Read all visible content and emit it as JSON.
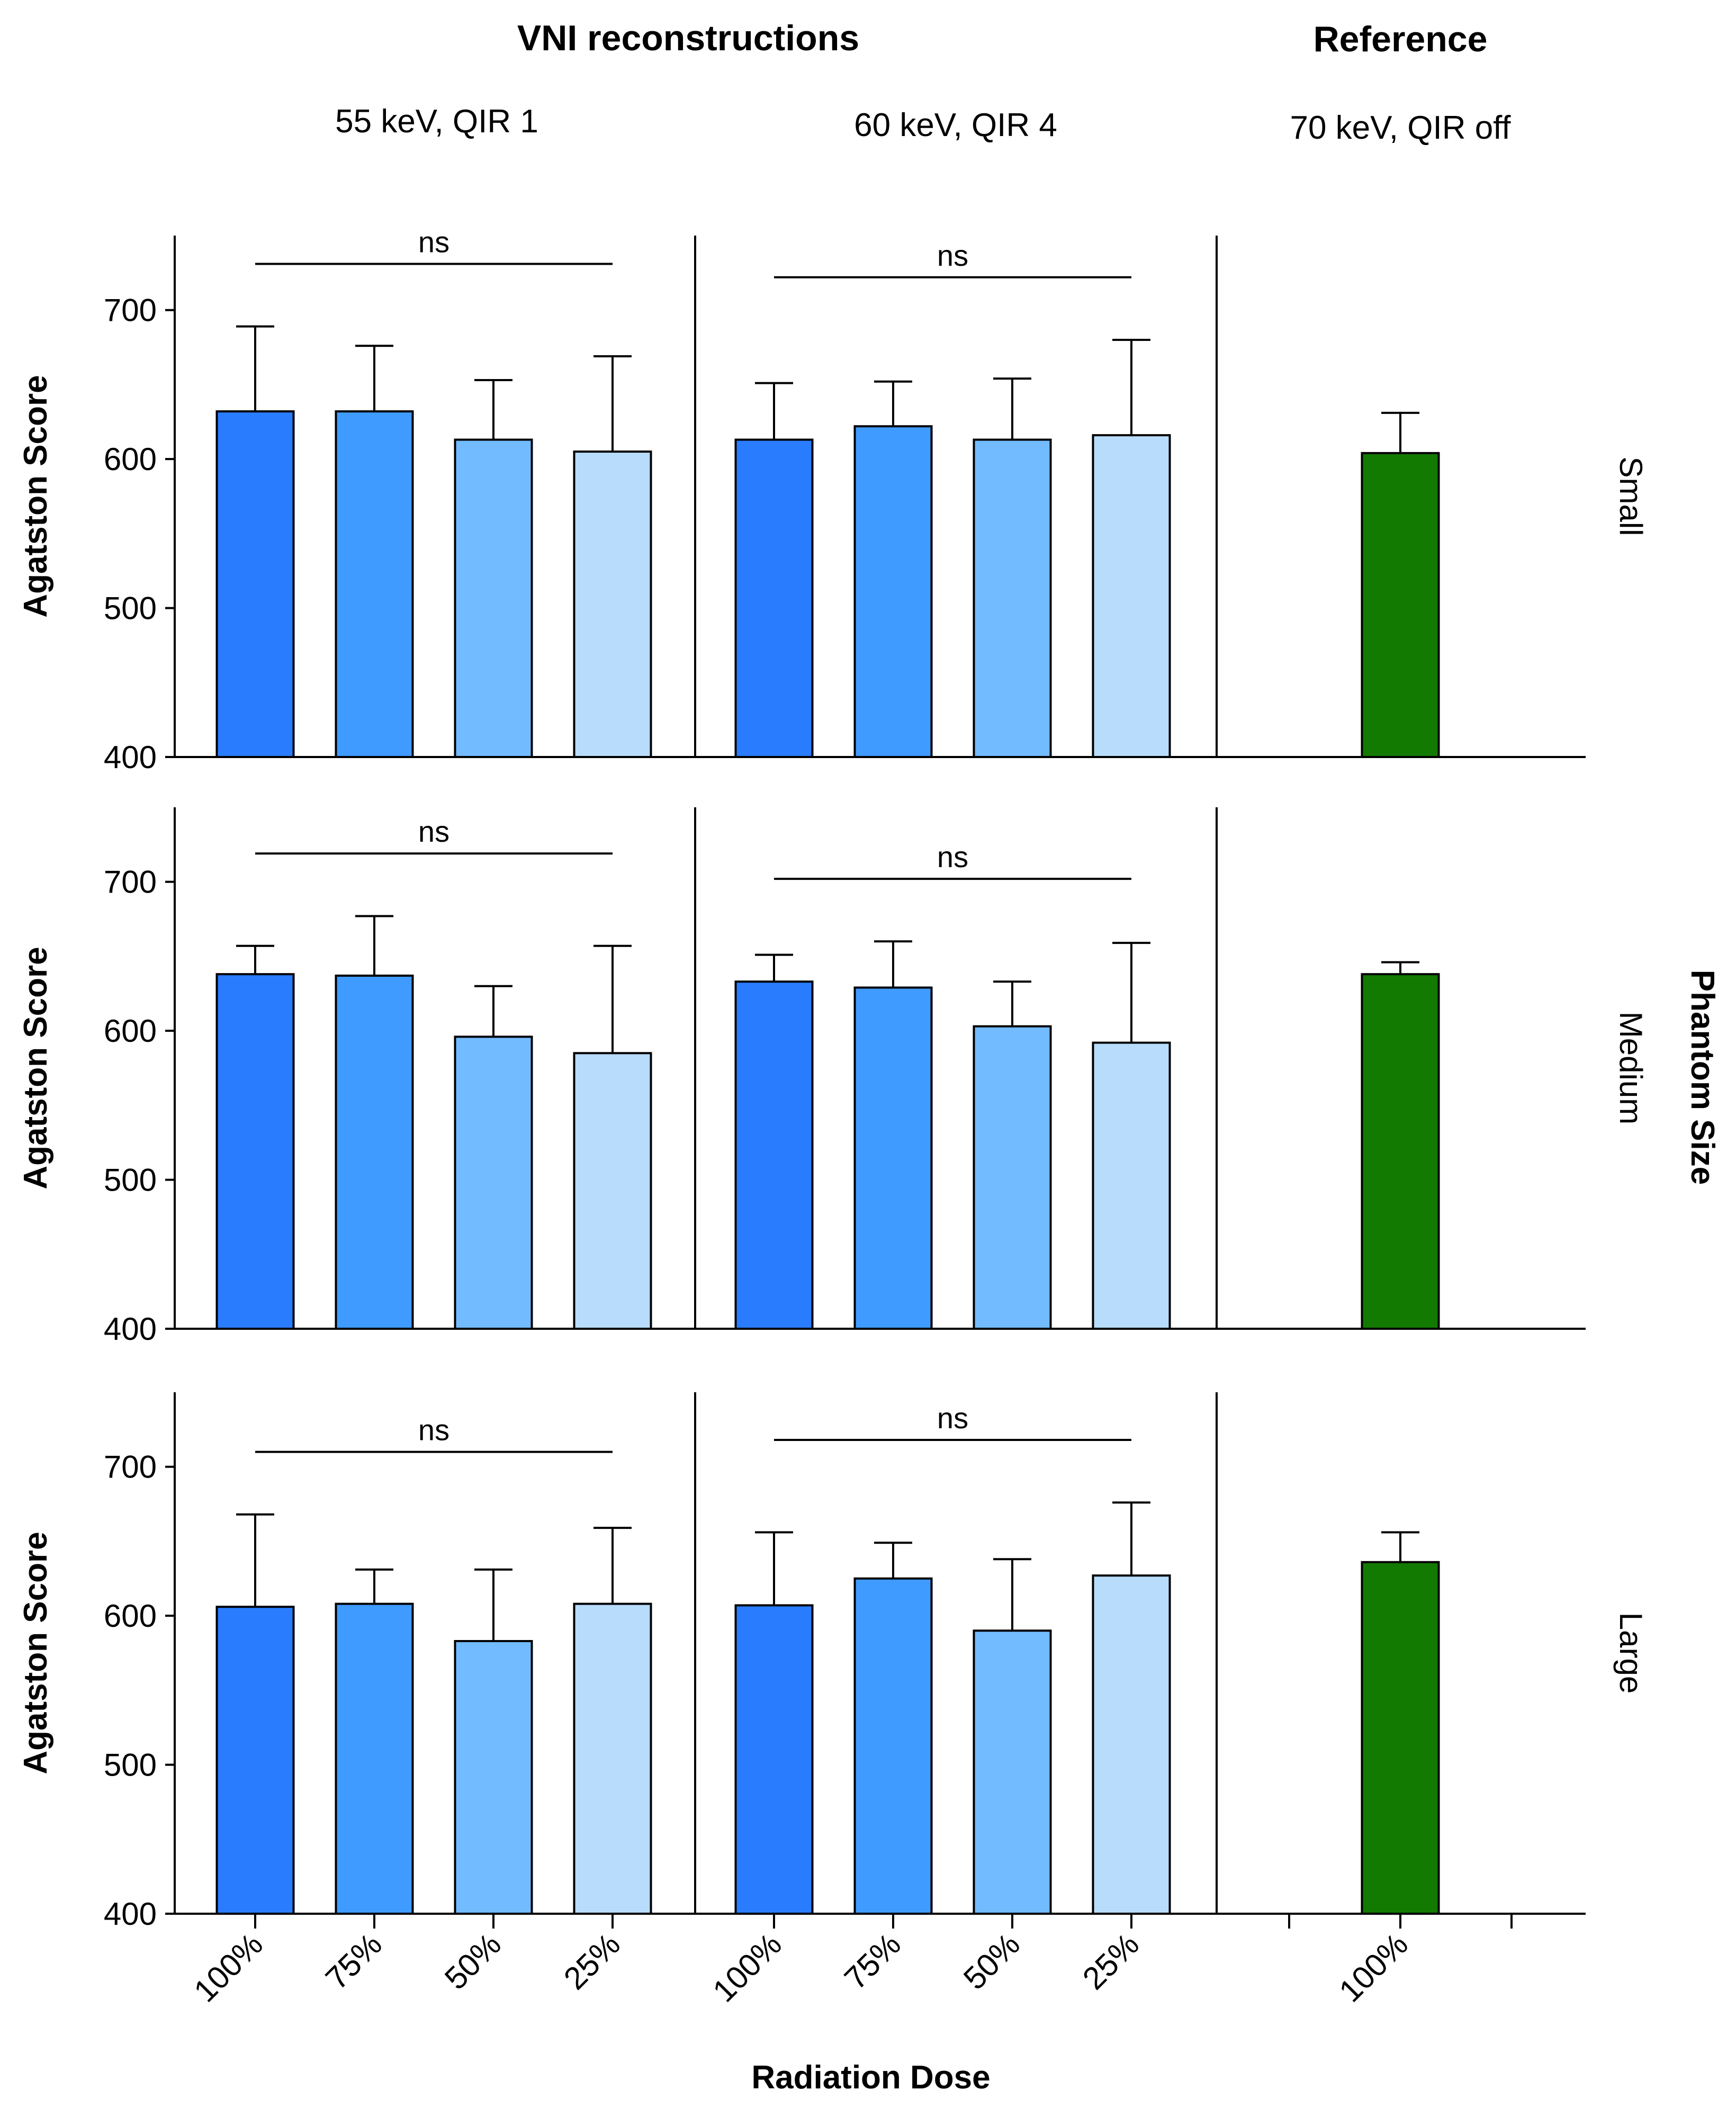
{
  "chart_data": {
    "type": "bar",
    "group_titles": {
      "vni": "VNI reconstructions",
      "reference": "Reference"
    },
    "column_subtitles": [
      "55 keV, QIR 1",
      "60 keV, QIR 4",
      "70 keV, QIR off"
    ],
    "ylabel": "Agatston Score",
    "xlabel": "Radiation Dose",
    "row_axis_label": "Phantom Size",
    "ylim": [
      400,
      750
    ],
    "yticks": [
      "400",
      "500",
      "600",
      "700"
    ],
    "categories": [
      "100%",
      "75%",
      "50%",
      "25%"
    ],
    "reference_categories": [
      "100%"
    ],
    "significance_label": "ns",
    "colors": {
      "dose_100": "#2a7cff",
      "dose_75": "#3f9bff",
      "dose_50": "#72bbff",
      "dose_25": "#b8dcfb",
      "reference": "#127a00"
    },
    "rows": [
      {
        "phantom_size": "Small",
        "panels": [
          {
            "means": [
              632,
              632,
              613,
              605
            ],
            "upper_error": [
              689,
              676,
              653,
              669
            ]
          },
          {
            "means": [
              613,
              622,
              613,
              616
            ],
            "upper_error": [
              651,
              652,
              654,
              680
            ]
          },
          {
            "means": [
              604
            ],
            "upper_error": [
              631
            ]
          }
        ]
      },
      {
        "phantom_size": "Medium",
        "panels": [
          {
            "means": [
              638,
              637,
              596,
              585
            ],
            "upper_error": [
              657,
              677,
              630,
              657
            ]
          },
          {
            "means": [
              633,
              629,
              603,
              592
            ],
            "upper_error": [
              651,
              660,
              633,
              659
            ]
          },
          {
            "means": [
              638
            ],
            "upper_error": [
              646
            ]
          }
        ]
      },
      {
        "phantom_size": "Large",
        "panels": [
          {
            "means": [
              606,
              608,
              583,
              608
            ],
            "upper_error": [
              668,
              631,
              631,
              659
            ]
          },
          {
            "means": [
              607,
              625,
              590,
              627
            ],
            "upper_error": [
              656,
              649,
              638,
              676
            ]
          },
          {
            "means": [
              636
            ],
            "upper_error": [
              656
            ]
          }
        ]
      }
    ]
  }
}
